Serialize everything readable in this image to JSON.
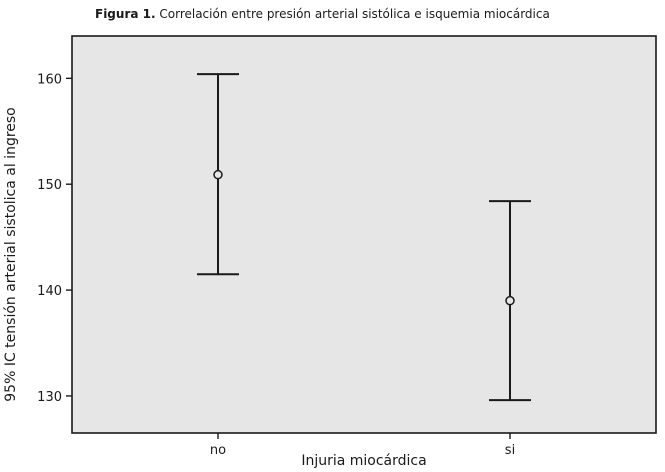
{
  "caption": {
    "label": "Figura 1.",
    "text": "Correlación entre presión arterial sistólica e isquemia miocárdica"
  },
  "chart_data": {
    "type": "errorbar",
    "categories": [
      "no",
      "si"
    ],
    "series": [
      {
        "mean": [
          150.9,
          139.0
        ],
        "lower": [
          141.5,
          129.6
        ],
        "upper": [
          160.4,
          148.4
        ]
      }
    ],
    "xlabel": "Injuria miocárdica",
    "ylabel": "95% IC tensión arterial sistolica al ingreso",
    "yticks": [
      "130",
      "140",
      "150",
      "160"
    ],
    "ylim": [
      126.5,
      164
    ],
    "grid": false,
    "background_color": "#e6e6e6",
    "line_color": "#1a1a1a"
  }
}
